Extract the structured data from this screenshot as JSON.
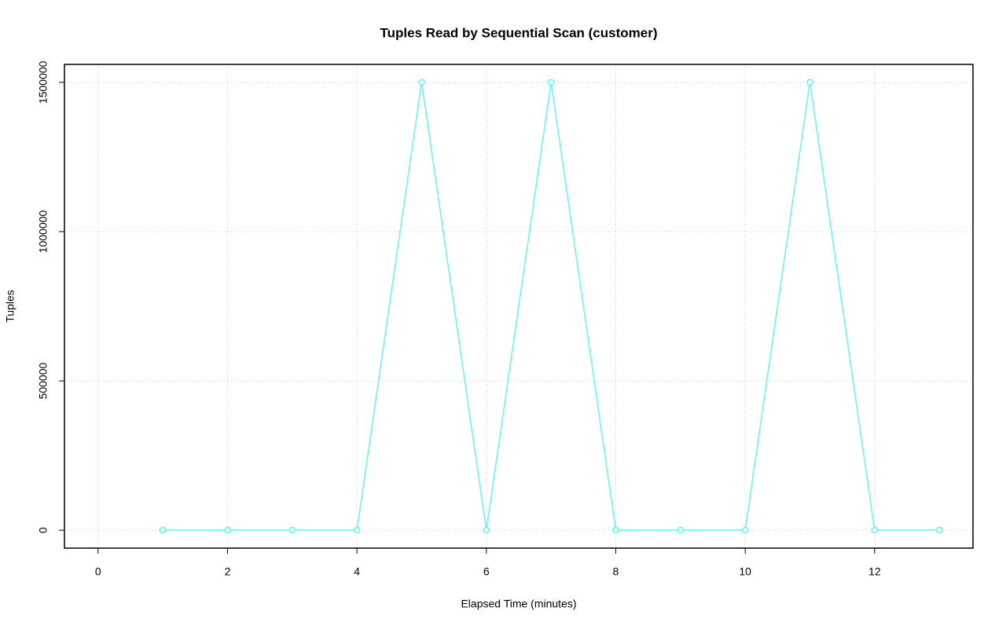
{
  "chart_data": {
    "type": "line",
    "title": "Tuples Read by Sequential Scan (customer)",
    "x_label": "Elapsed Time (minutes)",
    "y_label": "Tuples",
    "x": [
      1,
      2,
      3,
      4,
      5,
      6,
      7,
      8,
      9,
      10,
      11,
      12,
      13
    ],
    "series": [
      {
        "color": "#5ff5f5",
        "values": [
          0,
          0,
          0,
          0,
          1500000,
          0,
          1500000,
          0,
          0,
          0,
          1500000,
          0,
          0
        ]
      }
    ],
    "xlim": [
      -0.52,
      13.52
    ],
    "ylim": [
      -60000,
      1560000
    ],
    "xticks": [
      0,
      2,
      4,
      6,
      8,
      10,
      12
    ],
    "yticks": [
      0,
      500000,
      1000000,
      1500000
    ],
    "grid": true
  }
}
